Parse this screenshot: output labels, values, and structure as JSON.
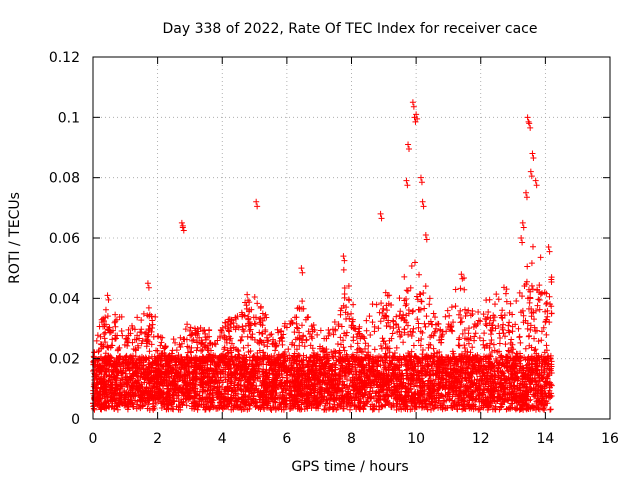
{
  "chart_data": {
    "type": "scatter",
    "title": "Day 338 of 2022, Rate Of TEC Index for receiver cace",
    "xlabel": "GPS time / hours",
    "ylabel": "ROTI / TECUs",
    "xlim": [
      0,
      16
    ],
    "ylim": [
      0,
      0.12
    ],
    "x_ticks": [
      "0",
      "2",
      "4",
      "6",
      "8",
      "10",
      "12",
      "14",
      "16"
    ],
    "y_ticks": [
      "0",
      "0.02",
      "0.04",
      "0.06",
      "0.08",
      "0.1",
      "0.12"
    ],
    "grid": true,
    "marker": "+",
    "color": "#ff0000",
    "data_range_hours": [
      0,
      14.2
    ],
    "notable_points": [
      {
        "x": 2.75,
        "y": 0.065
      },
      {
        "x": 2.78,
        "y": 0.064
      },
      {
        "x": 5.05,
        "y": 0.072
      },
      {
        "x": 8.9,
        "y": 0.068
      },
      {
        "x": 9.9,
        "y": 0.105
      },
      {
        "x": 9.95,
        "y": 0.1
      },
      {
        "x": 10.0,
        "y": 0.101
      },
      {
        "x": 9.75,
        "y": 0.091
      },
      {
        "x": 10.15,
        "y": 0.08
      },
      {
        "x": 9.7,
        "y": 0.079
      },
      {
        "x": 10.2,
        "y": 0.072
      },
      {
        "x": 10.3,
        "y": 0.061
      },
      {
        "x": 13.45,
        "y": 0.1
      },
      {
        "x": 13.5,
        "y": 0.098
      },
      {
        "x": 13.6,
        "y": 0.088
      },
      {
        "x": 13.55,
        "y": 0.082
      },
      {
        "x": 13.7,
        "y": 0.079
      },
      {
        "x": 13.4,
        "y": 0.075
      },
      {
        "x": 13.3,
        "y": 0.065
      },
      {
        "x": 13.25,
        "y": 0.06
      },
      {
        "x": 14.1,
        "y": 0.057
      },
      {
        "x": 11.4,
        "y": 0.048
      },
      {
        "x": 6.45,
        "y": 0.05
      },
      {
        "x": 7.75,
        "y": 0.054
      },
      {
        "x": 1.7,
        "y": 0.045
      },
      {
        "x": 0.45,
        "y": 0.041
      }
    ],
    "activity_envelope": [
      {
        "x": 0.0,
        "peak": 0.022
      },
      {
        "x": 0.4,
        "peak": 0.04
      },
      {
        "x": 0.8,
        "peak": 0.035
      },
      {
        "x": 1.2,
        "peak": 0.03
      },
      {
        "x": 1.6,
        "peak": 0.044
      },
      {
        "x": 1.9,
        "peak": 0.035
      },
      {
        "x": 2.3,
        "peak": 0.02
      },
      {
        "x": 2.8,
        "peak": 0.032
      },
      {
        "x": 3.3,
        "peak": 0.03
      },
      {
        "x": 3.8,
        "peak": 0.025
      },
      {
        "x": 4.2,
        "peak": 0.035
      },
      {
        "x": 4.8,
        "peak": 0.042
      },
      {
        "x": 5.1,
        "peak": 0.046
      },
      {
        "x": 5.6,
        "peak": 0.028
      },
      {
        "x": 6.0,
        "peak": 0.032
      },
      {
        "x": 6.5,
        "peak": 0.043
      },
      {
        "x": 7.0,
        "peak": 0.026
      },
      {
        "x": 7.5,
        "peak": 0.035
      },
      {
        "x": 7.8,
        "peak": 0.052
      },
      {
        "x": 8.3,
        "peak": 0.028
      },
      {
        "x": 8.8,
        "peak": 0.045
      },
      {
        "x": 9.3,
        "peak": 0.04
      },
      {
        "x": 9.8,
        "peak": 0.055
      },
      {
        "x": 10.2,
        "peak": 0.05
      },
      {
        "x": 10.6,
        "peak": 0.036
      },
      {
        "x": 11.0,
        "peak": 0.04
      },
      {
        "x": 11.4,
        "peak": 0.05
      },
      {
        "x": 11.8,
        "peak": 0.036
      },
      {
        "x": 12.2,
        "peak": 0.04
      },
      {
        "x": 12.6,
        "peak": 0.05
      },
      {
        "x": 13.0,
        "peak": 0.045
      },
      {
        "x": 13.4,
        "peak": 0.06
      },
      {
        "x": 13.8,
        "peak": 0.055
      },
      {
        "x": 14.2,
        "peak": 0.052
      }
    ]
  }
}
